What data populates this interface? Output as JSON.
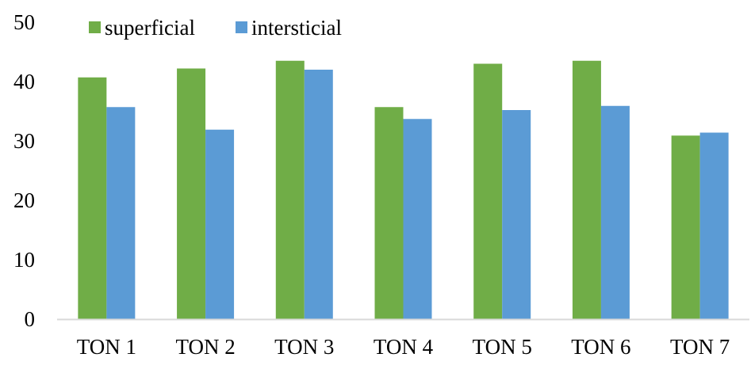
{
  "chart_data": {
    "type": "bar",
    "title": "",
    "xlabel": "",
    "ylabel": "",
    "categories": [
      "TON 1",
      "TON 2",
      "TON 3",
      "TON 4",
      "TON 5",
      "TON 6",
      "TON 7"
    ],
    "series": [
      {
        "name": "superficial",
        "color": "#70AD47",
        "values": [
          40.7,
          42.2,
          43.5,
          35.7,
          43.0,
          43.5,
          30.9
        ]
      },
      {
        "name": "intersticial",
        "color": "#5B9BD5",
        "values": [
          35.7,
          31.9,
          42.0,
          33.7,
          35.2,
          35.9,
          31.4
        ]
      }
    ],
    "ylim": [
      0,
      50
    ],
    "yticks": [
      0,
      10,
      20,
      30,
      40,
      50
    ],
    "grid": false,
    "legend_position": "top-left",
    "axis_color": "#D9D9D9"
  }
}
